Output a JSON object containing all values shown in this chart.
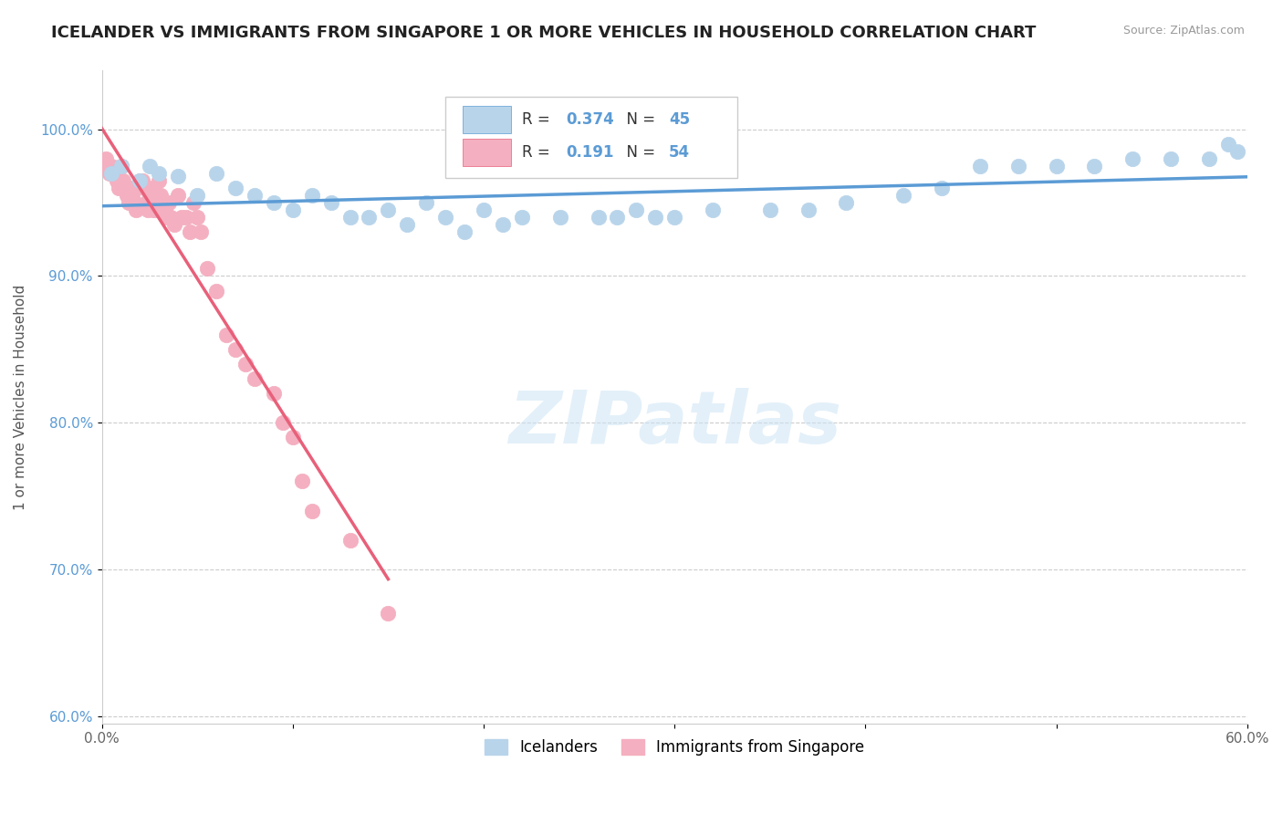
{
  "title": "ICELANDER VS IMMIGRANTS FROM SINGAPORE 1 OR MORE VEHICLES IN HOUSEHOLD CORRELATION CHART",
  "source": "Source: ZipAtlas.com",
  "ylabel": "1 or more Vehicles in Household",
  "xlim": [
    0.0,
    0.6
  ],
  "ylim": [
    0.595,
    1.04
  ],
  "yticks": [
    0.6,
    0.7,
    0.8,
    0.9,
    1.0
  ],
  "yticklabels": [
    "60.0%",
    "70.0%",
    "80.0%",
    "90.0%",
    "100.0%"
  ],
  "xtick_positions": [
    0.0,
    0.1,
    0.2,
    0.3,
    0.4,
    0.5,
    0.6
  ],
  "xticklabels": [
    "0.0%",
    "",
    "",
    "",
    "",
    "",
    "60.0%"
  ],
  "legend_labels": [
    "Icelanders",
    "Immigrants from Singapore"
  ],
  "icelander_color": "#b8d4ea",
  "singapore_color": "#f4afc0",
  "icelander_line_color": "#5b9bd5",
  "singapore_line_color": "#e8607a",
  "R_icelander": 0.374,
  "N_icelander": 45,
  "R_singapore": 0.191,
  "N_singapore": 54,
  "watermark": "ZIPatlas",
  "background_color": "#ffffff",
  "icelander_x": [
    0.005,
    0.01,
    0.02,
    0.025,
    0.03,
    0.04,
    0.05,
    0.06,
    0.07,
    0.08,
    0.09,
    0.1,
    0.11,
    0.12,
    0.13,
    0.14,
    0.15,
    0.16,
    0.17,
    0.18,
    0.19,
    0.2,
    0.21,
    0.22,
    0.24,
    0.26,
    0.27,
    0.28,
    0.29,
    0.3,
    0.32,
    0.35,
    0.37,
    0.39,
    0.42,
    0.44,
    0.46,
    0.48,
    0.5,
    0.52,
    0.54,
    0.56,
    0.58,
    0.59,
    0.595
  ],
  "icelander_y": [
    0.97,
    0.975,
    0.965,
    0.975,
    0.97,
    0.968,
    0.955,
    0.97,
    0.96,
    0.955,
    0.95,
    0.945,
    0.955,
    0.95,
    0.94,
    0.94,
    0.945,
    0.935,
    0.95,
    0.94,
    0.93,
    0.945,
    0.935,
    0.94,
    0.94,
    0.94,
    0.94,
    0.945,
    0.94,
    0.94,
    0.945,
    0.945,
    0.945,
    0.95,
    0.955,
    0.96,
    0.975,
    0.975,
    0.975,
    0.975,
    0.98,
    0.98,
    0.98,
    0.99,
    0.985
  ],
  "singapore_x": [
    0.002,
    0.003,
    0.004,
    0.005,
    0.006,
    0.007,
    0.008,
    0.009,
    0.01,
    0.011,
    0.012,
    0.013,
    0.014,
    0.015,
    0.016,
    0.017,
    0.018,
    0.02,
    0.021,
    0.022,
    0.023,
    0.024,
    0.025,
    0.026,
    0.027,
    0.028,
    0.03,
    0.031,
    0.032,
    0.033,
    0.034,
    0.035,
    0.036,
    0.038,
    0.04,
    0.042,
    0.044,
    0.046,
    0.048,
    0.05,
    0.052,
    0.055,
    0.06,
    0.065,
    0.07,
    0.075,
    0.08,
    0.09,
    0.095,
    0.1,
    0.105,
    0.11,
    0.13,
    0.15
  ],
  "singapore_y": [
    0.98,
    0.975,
    0.97,
    0.975,
    0.97,
    0.968,
    0.965,
    0.96,
    0.975,
    0.965,
    0.96,
    0.955,
    0.95,
    0.96,
    0.955,
    0.95,
    0.945,
    0.965,
    0.965,
    0.96,
    0.95,
    0.945,
    0.96,
    0.955,
    0.945,
    0.945,
    0.965,
    0.955,
    0.95,
    0.945,
    0.94,
    0.95,
    0.94,
    0.935,
    0.955,
    0.94,
    0.94,
    0.93,
    0.95,
    0.94,
    0.93,
    0.905,
    0.89,
    0.86,
    0.85,
    0.84,
    0.83,
    0.82,
    0.8,
    0.79,
    0.76,
    0.74,
    0.72,
    0.67
  ]
}
